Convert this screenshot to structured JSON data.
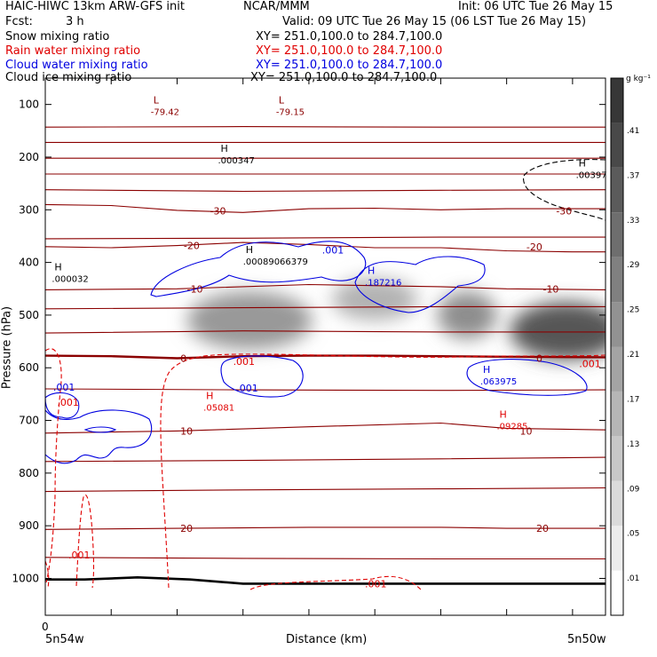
{
  "header": {
    "model": "HAIC-HIWC 13km ARW-GFS init",
    "org": "NCAR/MMM",
    "init": "Init: 06 UTC Tue 26 May 15",
    "fcst_label": "Fcst:",
    "fcst_value": "3 h",
    "valid": "Valid: 09 UTC Tue 26 May 15 (06 LST Tue 26 May 15)"
  },
  "fields": [
    {
      "name": "Snow mixing ratio",
      "xy": "XY= 251.0,100.0 to 284.7,100.0",
      "color": "#000000"
    },
    {
      "name": "Rain water mixing ratio",
      "xy": "XY= 251.0,100.0 to 284.7,100.0",
      "color": "#e00000"
    },
    {
      "name": "Cloud water mixing ratio",
      "xy": "XY= 251.0,100.0 to 284.7,100.0",
      "color": "#0000e0"
    },
    {
      "name": "Cloud ice mixing ratio",
      "xy": "XY= 251.0,100.0 to 284.7,100.0",
      "color": "#000000"
    }
  ],
  "chart_data": {
    "type": "heatmap",
    "ylabel": "Pressure (hPa)",
    "xlabel": "Distance (km)",
    "yticks": [
      100,
      200,
      300,
      400,
      500,
      600,
      700,
      800,
      900,
      1000
    ],
    "ylim": [
      1070,
      50
    ],
    "xlim": [
      0,
      850
    ],
    "x_origin_label": "0",
    "x_left_label": "5n54w",
    "x_right_label": "5n50w",
    "colorbar": {
      "unit": "g kg⁻¹",
      "levels": [
        0.01,
        0.05,
        0.09,
        0.13,
        0.17,
        0.21,
        0.25,
        0.29,
        0.33,
        0.37,
        0.41
      ],
      "labels": [
        ".01",
        ".05",
        ".09",
        ".13",
        ".17",
        ".21",
        ".25",
        ".29",
        ".33",
        ".37",
        ".41"
      ]
    },
    "shaded_blobs": [
      {
        "x": 310,
        "p": 510,
        "rx": 95,
        "rp": 55,
        "peak": 0.2
      },
      {
        "x": 500,
        "p": 470,
        "rx": 65,
        "rp": 40,
        "peak": 0.15
      },
      {
        "x": 640,
        "p": 500,
        "rx": 45,
        "rp": 45,
        "peak": 0.22
      },
      {
        "x": 790,
        "p": 530,
        "rx": 85,
        "rp": 55,
        "peak": 0.33
      }
    ],
    "temperature_contours": [
      {
        "label": "-30",
        "label_x": 250,
        "label_p": 302,
        "points": [
          [
            0,
            290
          ],
          [
            100,
            292
          ],
          [
            200,
            301
          ],
          [
            300,
            305
          ],
          [
            400,
            298
          ],
          [
            500,
            297
          ],
          [
            600,
            300
          ],
          [
            700,
            298
          ],
          [
            800,
            298
          ],
          [
            850,
            298
          ]
        ]
      },
      {
        "label": "-30",
        "label_x": 775,
        "label_p": 302,
        "points": [
          [
            0,
            262
          ],
          [
            300,
            265
          ],
          [
            600,
            263
          ],
          [
            850,
            262
          ]
        ]
      },
      {
        "label": "-20",
        "label_x": 210,
        "label_p": 368,
        "points": [
          [
            0,
            370
          ],
          [
            100,
            372
          ],
          [
            200,
            368
          ],
          [
            300,
            362
          ],
          [
            400,
            366
          ],
          [
            500,
            372
          ],
          [
            600,
            372
          ],
          [
            700,
            378
          ],
          [
            800,
            380
          ],
          [
            850,
            380
          ]
        ]
      },
      {
        "label": "-20",
        "label_x": 730,
        "label_p": 370,
        "points": [
          [
            0,
            355
          ],
          [
            300,
            354
          ],
          [
            600,
            352
          ],
          [
            850,
            352
          ]
        ]
      },
      {
        "label": "-10",
        "label_x": 215,
        "label_p": 450,
        "points": [
          [
            0,
            452
          ],
          [
            200,
            450
          ],
          [
            400,
            442
          ],
          [
            600,
            446
          ],
          [
            700,
            450
          ],
          [
            850,
            452
          ]
        ]
      },
      {
        "label": "-10",
        "label_x": 755,
        "label_p": 450,
        "points": [
          [
            0,
            488
          ],
          [
            300,
            486
          ],
          [
            600,
            484
          ],
          [
            850,
            484
          ]
        ]
      },
      {
        "label": "0",
        "label_x": 205,
        "label_p": 582,
        "bold": true,
        "points": [
          [
            0,
            577
          ],
          [
            100,
            578
          ],
          [
            200,
            582
          ],
          [
            300,
            578
          ],
          [
            400,
            577
          ],
          [
            500,
            577
          ],
          [
            600,
            578
          ],
          [
            700,
            579
          ],
          [
            850,
            580
          ]
        ]
      },
      {
        "label": "",
        "points": [
          [
            0,
            534
          ],
          [
            300,
            530
          ],
          [
            600,
            532
          ],
          [
            850,
            532
          ]
        ]
      },
      {
        "label": "",
        "points": [
          [
            0,
            640
          ],
          [
            300,
            642
          ],
          [
            600,
            643
          ],
          [
            850,
            642
          ]
        ]
      },
      {
        "label": "10",
        "label_x": 205,
        "label_p": 720,
        "points": [
          [
            0,
            724
          ],
          [
            200,
            720
          ],
          [
            400,
            712
          ],
          [
            600,
            705
          ],
          [
            700,
            715
          ],
          [
            850,
            718
          ]
        ]
      },
      {
        "label": "",
        "points": [
          [
            0,
            778
          ],
          [
            300,
            776
          ],
          [
            600,
            773
          ],
          [
            850,
            770
          ]
        ]
      },
      {
        "label": "",
        "points": [
          [
            0,
            835
          ],
          [
            300,
            832
          ],
          [
            600,
            830
          ],
          [
            850,
            828
          ]
        ]
      },
      {
        "label": "20",
        "label_x": 205,
        "label_p": 905,
        "points": [
          [
            0,
            907
          ],
          [
            200,
            905
          ],
          [
            400,
            903
          ],
          [
            600,
            903
          ],
          [
            700,
            905
          ],
          [
            850,
            905
          ]
        ]
      },
      {
        "label": "",
        "points": [
          [
            0,
            960
          ],
          [
            300,
            962
          ],
          [
            600,
            963
          ],
          [
            850,
            963
          ]
        ]
      },
      {
        "label": "",
        "points": [
          [
            0,
            143
          ],
          [
            300,
            142
          ],
          [
            600,
            143
          ],
          [
            850,
            143
          ]
        ]
      },
      {
        "label": "",
        "points": [
          [
            0,
            172
          ],
          [
            300,
            172
          ],
          [
            600,
            172
          ],
          [
            850,
            172
          ]
        ]
      },
      {
        "label": "",
        "points": [
          [
            0,
            202
          ],
          [
            300,
            202
          ],
          [
            600,
            202
          ],
          [
            850,
            202
          ]
        ]
      },
      {
        "label": "",
        "points": [
          [
            0,
            232
          ],
          [
            300,
            232
          ],
          [
            600,
            232
          ],
          [
            850,
            232
          ]
        ]
      }
    ],
    "extrema_labels": [
      {
        "mark": "L",
        "value": "-79.42",
        "x": 160,
        "p": 108,
        "color": "#8b0000"
      },
      {
        "mark": "L",
        "value": "-79.15",
        "x": 350,
        "p": 108,
        "color": "#8b0000"
      },
      {
        "mark": "H",
        "value": ".000347",
        "x": 262,
        "p": 200,
        "color": "#000000"
      },
      {
        "mark": "H",
        "value": ".00397",
        "x": 805,
        "p": 228,
        "color": "#000000"
      },
      {
        "mark": "H",
        "value": ".00089066379",
        "x": 300,
        "p": 392,
        "color": "#000000"
      },
      {
        "mark": "H",
        "value": ".000032",
        "x": 10,
        "p": 425,
        "color": "#000000"
      },
      {
        "mark": "H",
        "value": ".187216",
        "x": 485,
        "p": 432,
        "color": "#0000e0"
      },
      {
        "mark": "H",
        "value": ".063975",
        "x": 660,
        "p": 620,
        "color": "#0000e0"
      },
      {
        "mark": "H",
        "value": ".05081",
        "x": 240,
        "p": 670,
        "color": "#e00000"
      },
      {
        "mark": "H",
        "value": ".09285",
        "x": 685,
        "p": 705,
        "color": "#e00000"
      }
    ],
    "cloud_water_labels": [
      {
        "value": ".001",
        "x": 420,
        "p": 376
      },
      {
        "value": ".001",
        "x": 12,
        "p": 637
      },
      {
        "value": ".001",
        "x": 290,
        "p": 638
      }
    ],
    "rain_labels": [
      {
        "value": ".001",
        "x": 285,
        "p": 588
      },
      {
        "value": ".001",
        "x": 18,
        "p": 665
      },
      {
        "value": ".001",
        "x": 35,
        "p": 955
      },
      {
        "value": ".001",
        "x": 485,
        "p": 1010
      },
      {
        "value": ".001",
        "x": 810,
        "p": 592
      }
    ],
    "temperature_extra_labels": [
      {
        "value": "0",
        "x": 745,
        "p": 582
      },
      {
        "value": "10",
        "x": 720,
        "p": 720
      },
      {
        "value": "20",
        "x": 745,
        "p": 905
      }
    ],
    "terrain": [
      [
        0,
        1002
      ],
      [
        60,
        1002
      ],
      [
        140,
        998
      ],
      [
        220,
        1002
      ],
      [
        300,
        1010
      ],
      [
        400,
        1010
      ],
      [
        600,
        1010
      ],
      [
        850,
        1010
      ]
    ]
  },
  "colors": {
    "temperature": "#8b0000",
    "rain": "#e00000",
    "cloud_water": "#0000e0",
    "axis": "#000000"
  }
}
